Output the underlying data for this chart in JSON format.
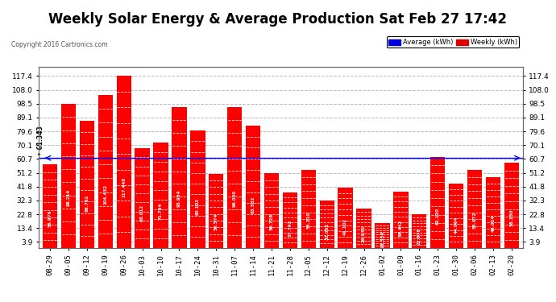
{
  "title": "Weekly Solar Energy & Average Production Sat Feb 27 17:42",
  "copyright": "Copyright 2016 Cartronics.com",
  "categories": [
    "08-29",
    "09-05",
    "09-12",
    "09-19",
    "09-26",
    "10-03",
    "10-10",
    "10-17",
    "10-24",
    "10-31",
    "11-07",
    "11-14",
    "11-21",
    "11-28",
    "12-05",
    "12-12",
    "12-19",
    "12-26",
    "01-02",
    "01-09",
    "01-16",
    "01-23",
    "01-30",
    "02-06",
    "02-13",
    "02-20"
  ],
  "values": [
    56.976,
    98.214,
    86.762,
    104.432,
    117.448,
    68.012,
    71.794,
    95.954,
    80.102,
    50.574,
    96.0,
    83.552,
    50.728,
    37.792,
    53.21,
    32.062,
    41.102,
    26.932,
    16.554,
    38.442,
    22.878,
    62.12,
    44.064,
    53.072,
    48.024,
    58.15
  ],
  "average": 61.343,
  "bar_color": "#ff0000",
  "average_line_color": "#0000ff",
  "background_color": "#ffffff",
  "plot_bg_color": "#ffffff",
  "grid_color": "#bbbbbb",
  "yticks": [
    3.9,
    13.4,
    22.8,
    32.3,
    41.8,
    51.2,
    60.7,
    70.1,
    79.6,
    89.1,
    98.5,
    108.0,
    117.4
  ],
  "ylim": [
    0,
    124
  ],
  "title_fontsize": 12,
  "tick_fontsize": 6.5,
  "legend_avg_color": "#0000dd",
  "legend_weekly_color": "#dd0000",
  "value_text_color": "#ffffff",
  "avg_label_color": "#000000"
}
